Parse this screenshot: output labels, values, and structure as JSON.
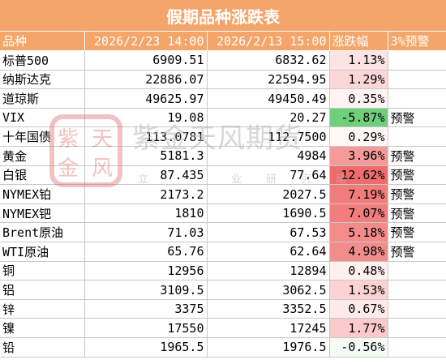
{
  "title": "假期品种涨跌表",
  "headers": [
    "品种",
    "2026/2/23 14:00",
    "2026/2/13 15:00",
    "涨跌幅",
    "3%预警"
  ],
  "rows": [
    {
      "name": "标普500",
      "v1": "6909.51",
      "v2": "6832.62",
      "chg": "1.13%",
      "warn": "",
      "chg_color": "#fde3e3"
    },
    {
      "name": "纳斯达克",
      "v1": "22886.07",
      "v2": "22594.95",
      "chg": "1.29%",
      "warn": "",
      "chg_color": "#fcd7d7"
    },
    {
      "name": "道琼斯",
      "v1": "49625.97",
      "v2": "49450.49",
      "chg": "0.35%",
      "warn": "",
      "chg_color": "#fff3f3"
    },
    {
      "name": "VIX",
      "v1": "19.08",
      "v2": "20.27",
      "chg": "-5.87%",
      "warn": "预警",
      "chg_color": "#6fcf7a"
    },
    {
      "name": "十年国债",
      "v1": "113.0781",
      "v2": "112.7500",
      "chg": "0.29%",
      "warn": "",
      "chg_color": "#fff6f6"
    },
    {
      "name": "黄金",
      "v1": "5181.3",
      "v2": "4984",
      "chg": "3.96%",
      "warn": "预警",
      "chg_color": "#f49a9a"
    },
    {
      "name": "白银",
      "v1": "87.435",
      "v2": "77.64",
      "chg": "12.62%",
      "warn": "预警",
      "chg_color": "#ee6c6c"
    },
    {
      "name": "NYMEX铂",
      "v1": "2173.2",
      "v2": "2027.5",
      "chg": "7.19%",
      "warn": "预警",
      "chg_color": "#f17c7c"
    },
    {
      "name": "NYMEX钯",
      "v1": "1810",
      "v2": "1690.5",
      "chg": "7.07%",
      "warn": "预警",
      "chg_color": "#f17d7d"
    },
    {
      "name": "Brent原油",
      "v1": "71.03",
      "v2": "67.53",
      "chg": "5.18%",
      "warn": "预警",
      "chg_color": "#f38b8b"
    },
    {
      "name": "WTI原油",
      "v1": "65.76",
      "v2": "62.64",
      "chg": "4.98%",
      "warn": "预警",
      "chg_color": "#f38d8d"
    },
    {
      "name": "铜",
      "v1": "12956",
      "v2": "12894",
      "chg": "0.48%",
      "warn": "",
      "chg_color": "#fff0f0"
    },
    {
      "name": "铝",
      "v1": "3109.5",
      "v2": "3062.5",
      "chg": "1.53%",
      "warn": "",
      "chg_color": "#fcd2d2"
    },
    {
      "name": "锌",
      "v1": "3375",
      "v2": "3352.5",
      "chg": "0.67%",
      "warn": "",
      "chg_color": "#feeaea"
    },
    {
      "name": "镍",
      "v1": "17550",
      "v2": "17245",
      "chg": "1.77%",
      "warn": "",
      "chg_color": "#fbcbcb"
    },
    {
      "name": "铅",
      "v1": "1965.5",
      "v2": "1976.5",
      "chg": "-0.56%",
      "warn": "",
      "chg_color": "#f4fbf4"
    }
  ],
  "watermark": {
    "brand": "紫金天风期货",
    "slogan": [
      "立",
      "业",
      "研",
      "究",
      "动"
    ],
    "seal_text": [
      "紫",
      "天",
      "金",
      "风"
    ]
  },
  "colors": {
    "header": "#f4a56a",
    "grid": "#c8c8c8"
  }
}
